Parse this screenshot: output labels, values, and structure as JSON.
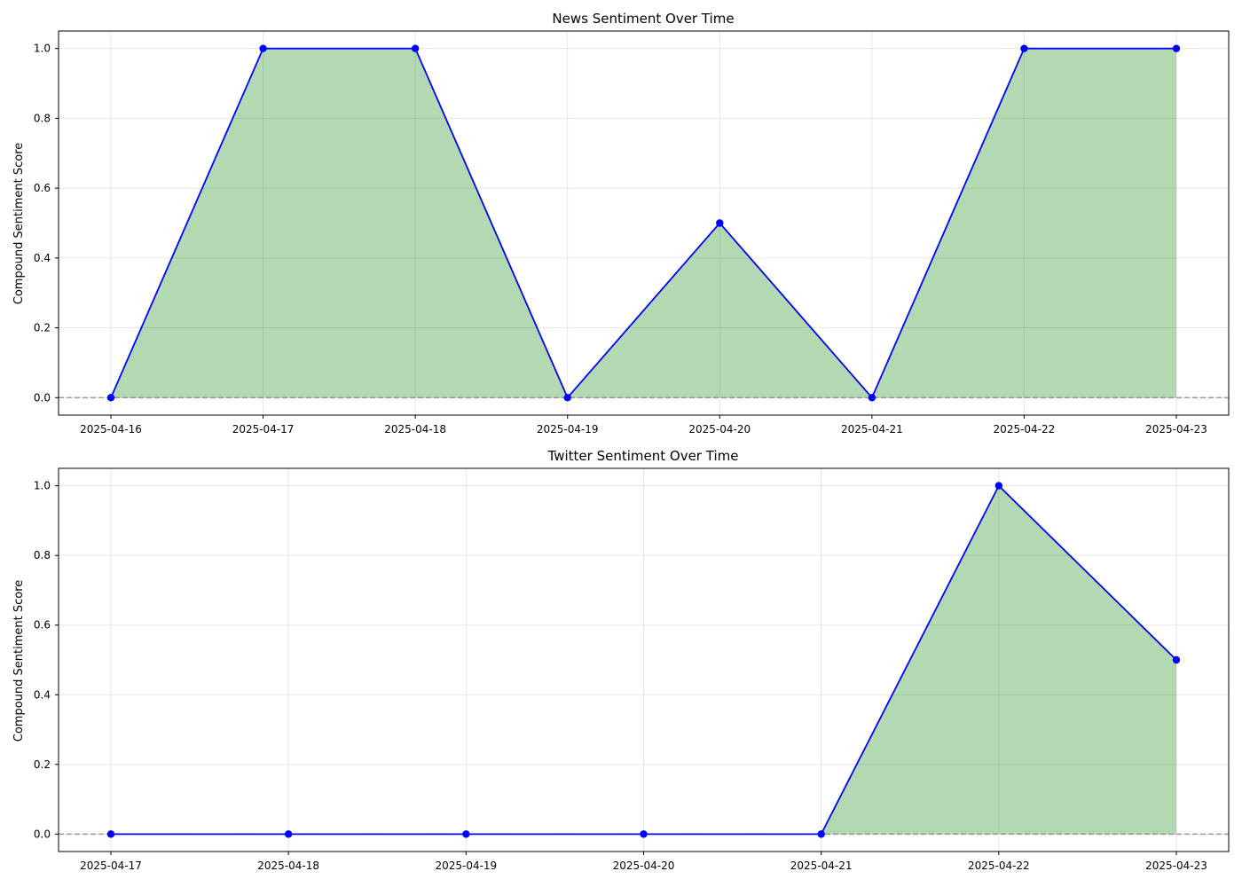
{
  "colors": {
    "line": "#0000ff",
    "marker": "#0000ff",
    "fill": "#008000",
    "zero_line": "#808080",
    "grid": "#b0b0b0",
    "axes": "#000000"
  },
  "chart_data": [
    {
      "type": "area",
      "title": "News Sentiment Over Time",
      "xlabel": "",
      "ylabel": "Compound Sentiment Score",
      "x": [
        "2025-04-16",
        "2025-04-17",
        "2025-04-18",
        "2025-04-19",
        "2025-04-20",
        "2025-04-21",
        "2025-04-22",
        "2025-04-23"
      ],
      "series": [
        {
          "values": [
            0.0,
            1.0,
            1.0,
            0.0,
            0.5,
            0.0,
            1.0,
            1.0
          ]
        }
      ],
      "ylim": [
        -0.05,
        1.05
      ],
      "yticks": [
        "0.0",
        "0.2",
        "0.4",
        "0.6",
        "0.8",
        "1.0"
      ],
      "grid": true,
      "reference_line_y": 0.0
    },
    {
      "type": "area",
      "title": "Twitter Sentiment Over Time",
      "xlabel": "",
      "ylabel": "Compound Sentiment Score",
      "x": [
        "2025-04-17",
        "2025-04-18",
        "2025-04-19",
        "2025-04-20",
        "2025-04-21",
        "2025-04-22",
        "2025-04-23"
      ],
      "series": [
        {
          "values": [
            0.0,
            0.0,
            0.0,
            0.0,
            0.0,
            1.0,
            0.5
          ]
        }
      ],
      "ylim": [
        -0.05,
        1.05
      ],
      "yticks": [
        "0.0",
        "0.2",
        "0.4",
        "0.6",
        "0.8",
        "1.0"
      ],
      "grid": true,
      "reference_line_y": 0.0
    }
  ]
}
